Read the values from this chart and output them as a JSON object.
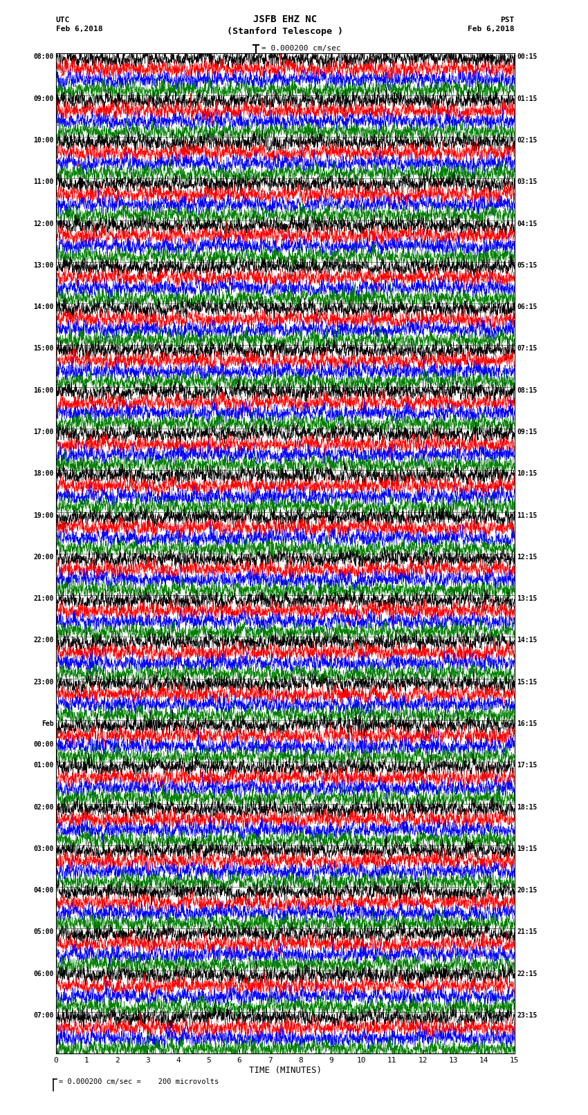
{
  "title_line1": "JSFB EHZ NC",
  "title_line2": "(Stanford Telescope )",
  "scale_label": "= 0.000200 cm/sec",
  "left_label_top": "UTC",
  "left_label_date": "Feb 6,2018",
  "right_label_top": "PST",
  "right_label_date": "Feb 6,2018",
  "xlabel": "TIME (MINUTES)",
  "bottom_note": "= 0.000200 cm/sec =    200 microvolts",
  "utc_times": [
    "08:00",
    "09:00",
    "10:00",
    "11:00",
    "12:00",
    "13:00",
    "14:00",
    "15:00",
    "16:00",
    "17:00",
    "18:00",
    "19:00",
    "20:00",
    "21:00",
    "22:00",
    "23:00",
    "Feb\n00:00",
    "01:00",
    "02:00",
    "03:00",
    "04:00",
    "05:00",
    "06:00",
    "07:00"
  ],
  "pst_times": [
    "00:15",
    "01:15",
    "02:15",
    "03:15",
    "04:15",
    "05:15",
    "06:15",
    "07:15",
    "08:15",
    "09:15",
    "10:15",
    "11:15",
    "12:15",
    "13:15",
    "14:15",
    "15:15",
    "16:15",
    "17:15",
    "18:15",
    "19:15",
    "20:15",
    "21:15",
    "22:15",
    "23:15"
  ],
  "colors": [
    "black",
    "red",
    "blue",
    "green"
  ],
  "n_hour_groups": 24,
  "traces_per_group": 4,
  "x_min": 0,
  "x_max": 15,
  "x_ticks": [
    0,
    1,
    2,
    3,
    4,
    5,
    6,
    7,
    8,
    9,
    10,
    11,
    12,
    13,
    14,
    15
  ],
  "bg_color": "white",
  "noise_seed": 42
}
